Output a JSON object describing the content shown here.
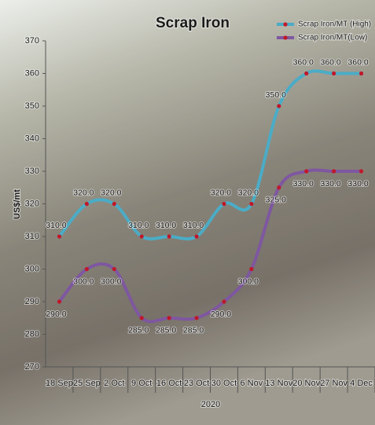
{
  "chart_data": {
    "type": "line",
    "title": "Scrap Iron",
    "categories": [
      "18 Sep",
      "25 Sep",
      "2 Oct",
      "9 Oct",
      "16 Oct",
      "23 Oct",
      "30 Oct",
      "6 Nov",
      "13 Nov",
      "20 Nov",
      "27 Nov",
      "4 Dec"
    ],
    "x_label": "2020",
    "y_label": "US$/mt",
    "ylim": [
      270,
      370
    ],
    "yticks": [
      270,
      280,
      290,
      300,
      310,
      320,
      330,
      340,
      350,
      360,
      370
    ],
    "grid": false,
    "legend": "top-right",
    "smooth": true,
    "marker_color": "#c0182a",
    "series": [
      {
        "name": "Scrap Iron/MT (High)",
        "color": "#4bacc6",
        "values": [
          310,
          320,
          320,
          310,
          310,
          310,
          320,
          320,
          350,
          360,
          360,
          360
        ],
        "value_labels": [
          "310.0",
          "320.0",
          "320.0",
          "310.0",
          "310.0",
          "310.0",
          "320.0",
          "320.0",
          "350.0",
          "360.0",
          "360.0",
          "360.0"
        ]
      },
      {
        "name": "Scrap Iron/MT(Low)",
        "color": "#7e57a0",
        "values": [
          290,
          300,
          300,
          285,
          285,
          285,
          290,
          300,
          325,
          330,
          330,
          330
        ],
        "value_labels": [
          "290.0",
          "300.0",
          "300.0",
          "285.0",
          "285.0",
          "285.0",
          "290.0",
          "300.0",
          "325.0",
          "330.0",
          "330.0",
          "330.0"
        ]
      }
    ]
  }
}
